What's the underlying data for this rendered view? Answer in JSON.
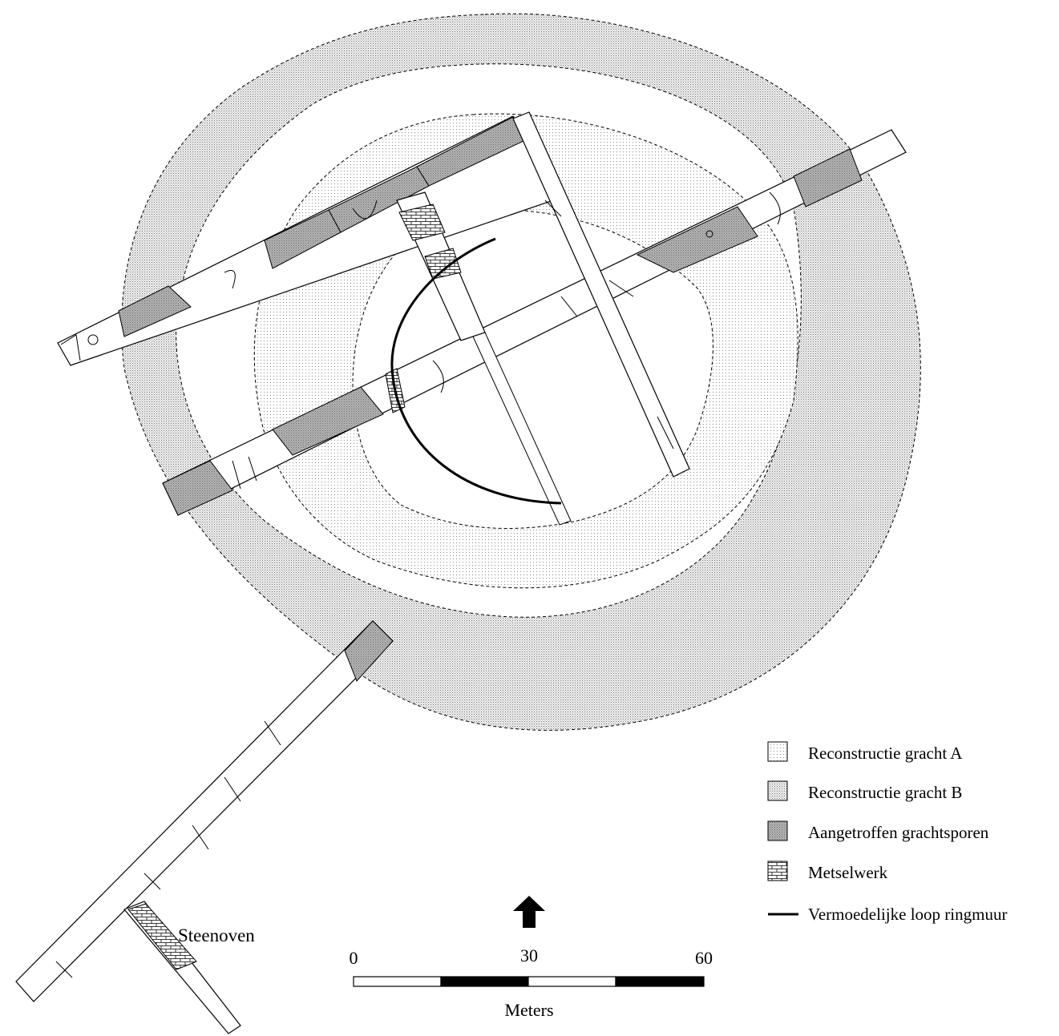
{
  "legend": {
    "items": [
      {
        "label": "Reconstructie gracht A",
        "symbol": "sparse-dot-fill"
      },
      {
        "label": "Reconstructie gracht B",
        "symbol": "dense-dot-fill"
      },
      {
        "label": "Aangetroffen grachtsporen",
        "symbol": "dark-dot-fill"
      },
      {
        "label": "Metselwerk",
        "symbol": "brick-pattern"
      },
      {
        "label": "Vermoedelijke loop ringmuur",
        "symbol": "thick-line"
      }
    ]
  },
  "scale_bar": {
    "ticks": [
      "0",
      "30",
      "60"
    ],
    "unit": "Meters",
    "max_value": 60,
    "segments": 4
  },
  "north_arrow": {
    "icon": "north-arrow-icon"
  },
  "places": {
    "steenoven": "Steenoven"
  },
  "colors": {
    "ink": "#000000",
    "fill_a": "#f4f4f4",
    "fill_b": "#e2e2e2",
    "traces": "#a9a9a9"
  }
}
